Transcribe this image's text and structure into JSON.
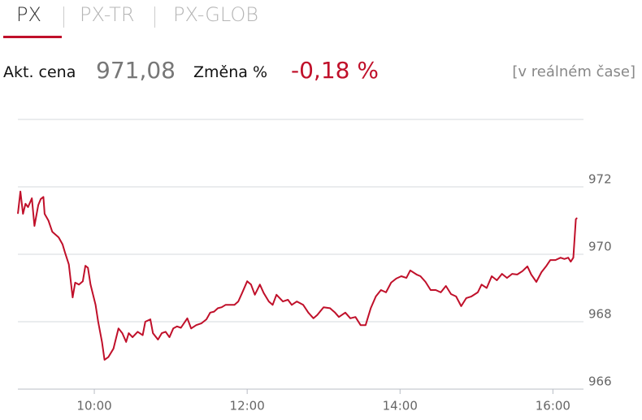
{
  "header": {
    "tabs": [
      "PX",
      "PX-TR",
      "PX-GLOB"
    ],
    "price_label": "Akt. cena",
    "price": "971,08",
    "change_label": "Změna %",
    "change": "-0,18 %",
    "note": "[v reálném čase]"
  },
  "chart_data": {
    "type": "line",
    "x": [
      "09:00",
      "09:02",
      "09:04",
      "09:06",
      "09:08",
      "09:11",
      "09:13",
      "09:16",
      "09:18",
      "09:20",
      "09:21",
      "09:24",
      "09:27",
      "09:32",
      "09:35",
      "09:37",
      "09:40",
      "09:43",
      "09:45",
      "09:48",
      "09:51",
      "09:53",
      "09:55",
      "09:57",
      "10:01",
      "10:03",
      "10:06",
      "10:08",
      "10:11",
      "10:15",
      "10:19",
      "10:22",
      "10:25",
      "10:27",
      "10:30",
      "10:34",
      "10:38",
      "10:40",
      "10:44",
      "10:46",
      "10:50",
      "10:53",
      "10:56",
      "10:59",
      "11:02",
      "11:05",
      "11:08",
      "11:13",
      "11:16",
      "11:20",
      "11:24",
      "11:28",
      "11:31",
      "11:34",
      "11:37",
      "11:40",
      "11:43",
      "11:50",
      "11:53",
      "11:56",
      "12:00",
      "12:03",
      "12:06",
      "12:10",
      "12:13",
      "12:17",
      "12:20",
      "12:23",
      "12:28",
      "12:32",
      "12:35",
      "12:39",
      "12:44",
      "12:48",
      "12:52",
      "12:55",
      "13:00",
      "13:05",
      "13:09",
      "13:12",
      "13:17",
      "13:21",
      "13:25",
      "13:29",
      "13:33",
      "13:37",
      "13:41",
      "13:45",
      "13:49",
      "13:53",
      "13:57",
      "14:01",
      "14:05",
      "14:08",
      "14:13",
      "14:16",
      "14:20",
      "14:24",
      "14:28",
      "14:32",
      "14:36",
      "14:40",
      "14:44",
      "14:48",
      "14:52",
      "14:56",
      "15:01",
      "15:04",
      "15:08",
      "15:12",
      "15:16",
      "15:20",
      "15:24",
      "15:28",
      "15:32",
      "15:36",
      "15:40",
      "15:43",
      "15:47",
      "15:51",
      "15:55",
      "15:58",
      "16:02",
      "16:06",
      "16:09",
      "16:12",
      "16:14",
      "16:16",
      "16:18",
      "16:19"
    ],
    "series": [
      {
        "name": "PX",
        "color": "#c0102a",
        "values": [
          971.2,
          971.86,
          971.2,
          971.5,
          971.4,
          971.66,
          970.84,
          971.46,
          971.64,
          971.7,
          971.2,
          971.0,
          970.67,
          970.5,
          970.3,
          970.05,
          969.7,
          968.72,
          969.16,
          969.1,
          969.2,
          969.66,
          969.6,
          969.1,
          968.5,
          968.0,
          967.4,
          966.87,
          966.95,
          967.2,
          967.8,
          967.66,
          967.4,
          967.66,
          967.54,
          967.7,
          967.6,
          968.0,
          968.07,
          967.66,
          967.47,
          967.66,
          967.7,
          967.54,
          967.8,
          967.86,
          967.82,
          968.1,
          967.8,
          967.9,
          967.95,
          968.07,
          968.27,
          968.3,
          968.4,
          968.43,
          968.5,
          968.5,
          968.6,
          968.85,
          969.2,
          969.1,
          968.8,
          969.1,
          968.85,
          968.6,
          968.5,
          968.8,
          968.6,
          968.65,
          968.5,
          968.6,
          968.5,
          968.27,
          968.1,
          968.2,
          968.43,
          968.4,
          968.27,
          968.14,
          968.27,
          968.1,
          968.14,
          967.9,
          967.9,
          968.4,
          968.75,
          968.94,
          968.87,
          969.16,
          969.28,
          969.35,
          969.3,
          969.52,
          969.4,
          969.35,
          969.18,
          968.94,
          968.94,
          968.87,
          969.06,
          968.82,
          968.75,
          968.46,
          968.7,
          968.75,
          968.87,
          969.1,
          969.0,
          969.35,
          969.23,
          969.42,
          969.3,
          969.42,
          969.4,
          969.5,
          969.64,
          969.4,
          969.18,
          969.47,
          969.66,
          969.83,
          969.83,
          969.9,
          969.86,
          969.9,
          969.78,
          969.9,
          971.04,
          971.08
        ]
      }
    ],
    "xlim": [
      "09:00",
      "16:24"
    ],
    "xticks": [
      "10:00",
      "12:00",
      "14:00",
      "16:00"
    ],
    "ylim": [
      966,
      974
    ],
    "yticks": [
      966,
      968,
      970,
      972
    ],
    "grid": true
  }
}
